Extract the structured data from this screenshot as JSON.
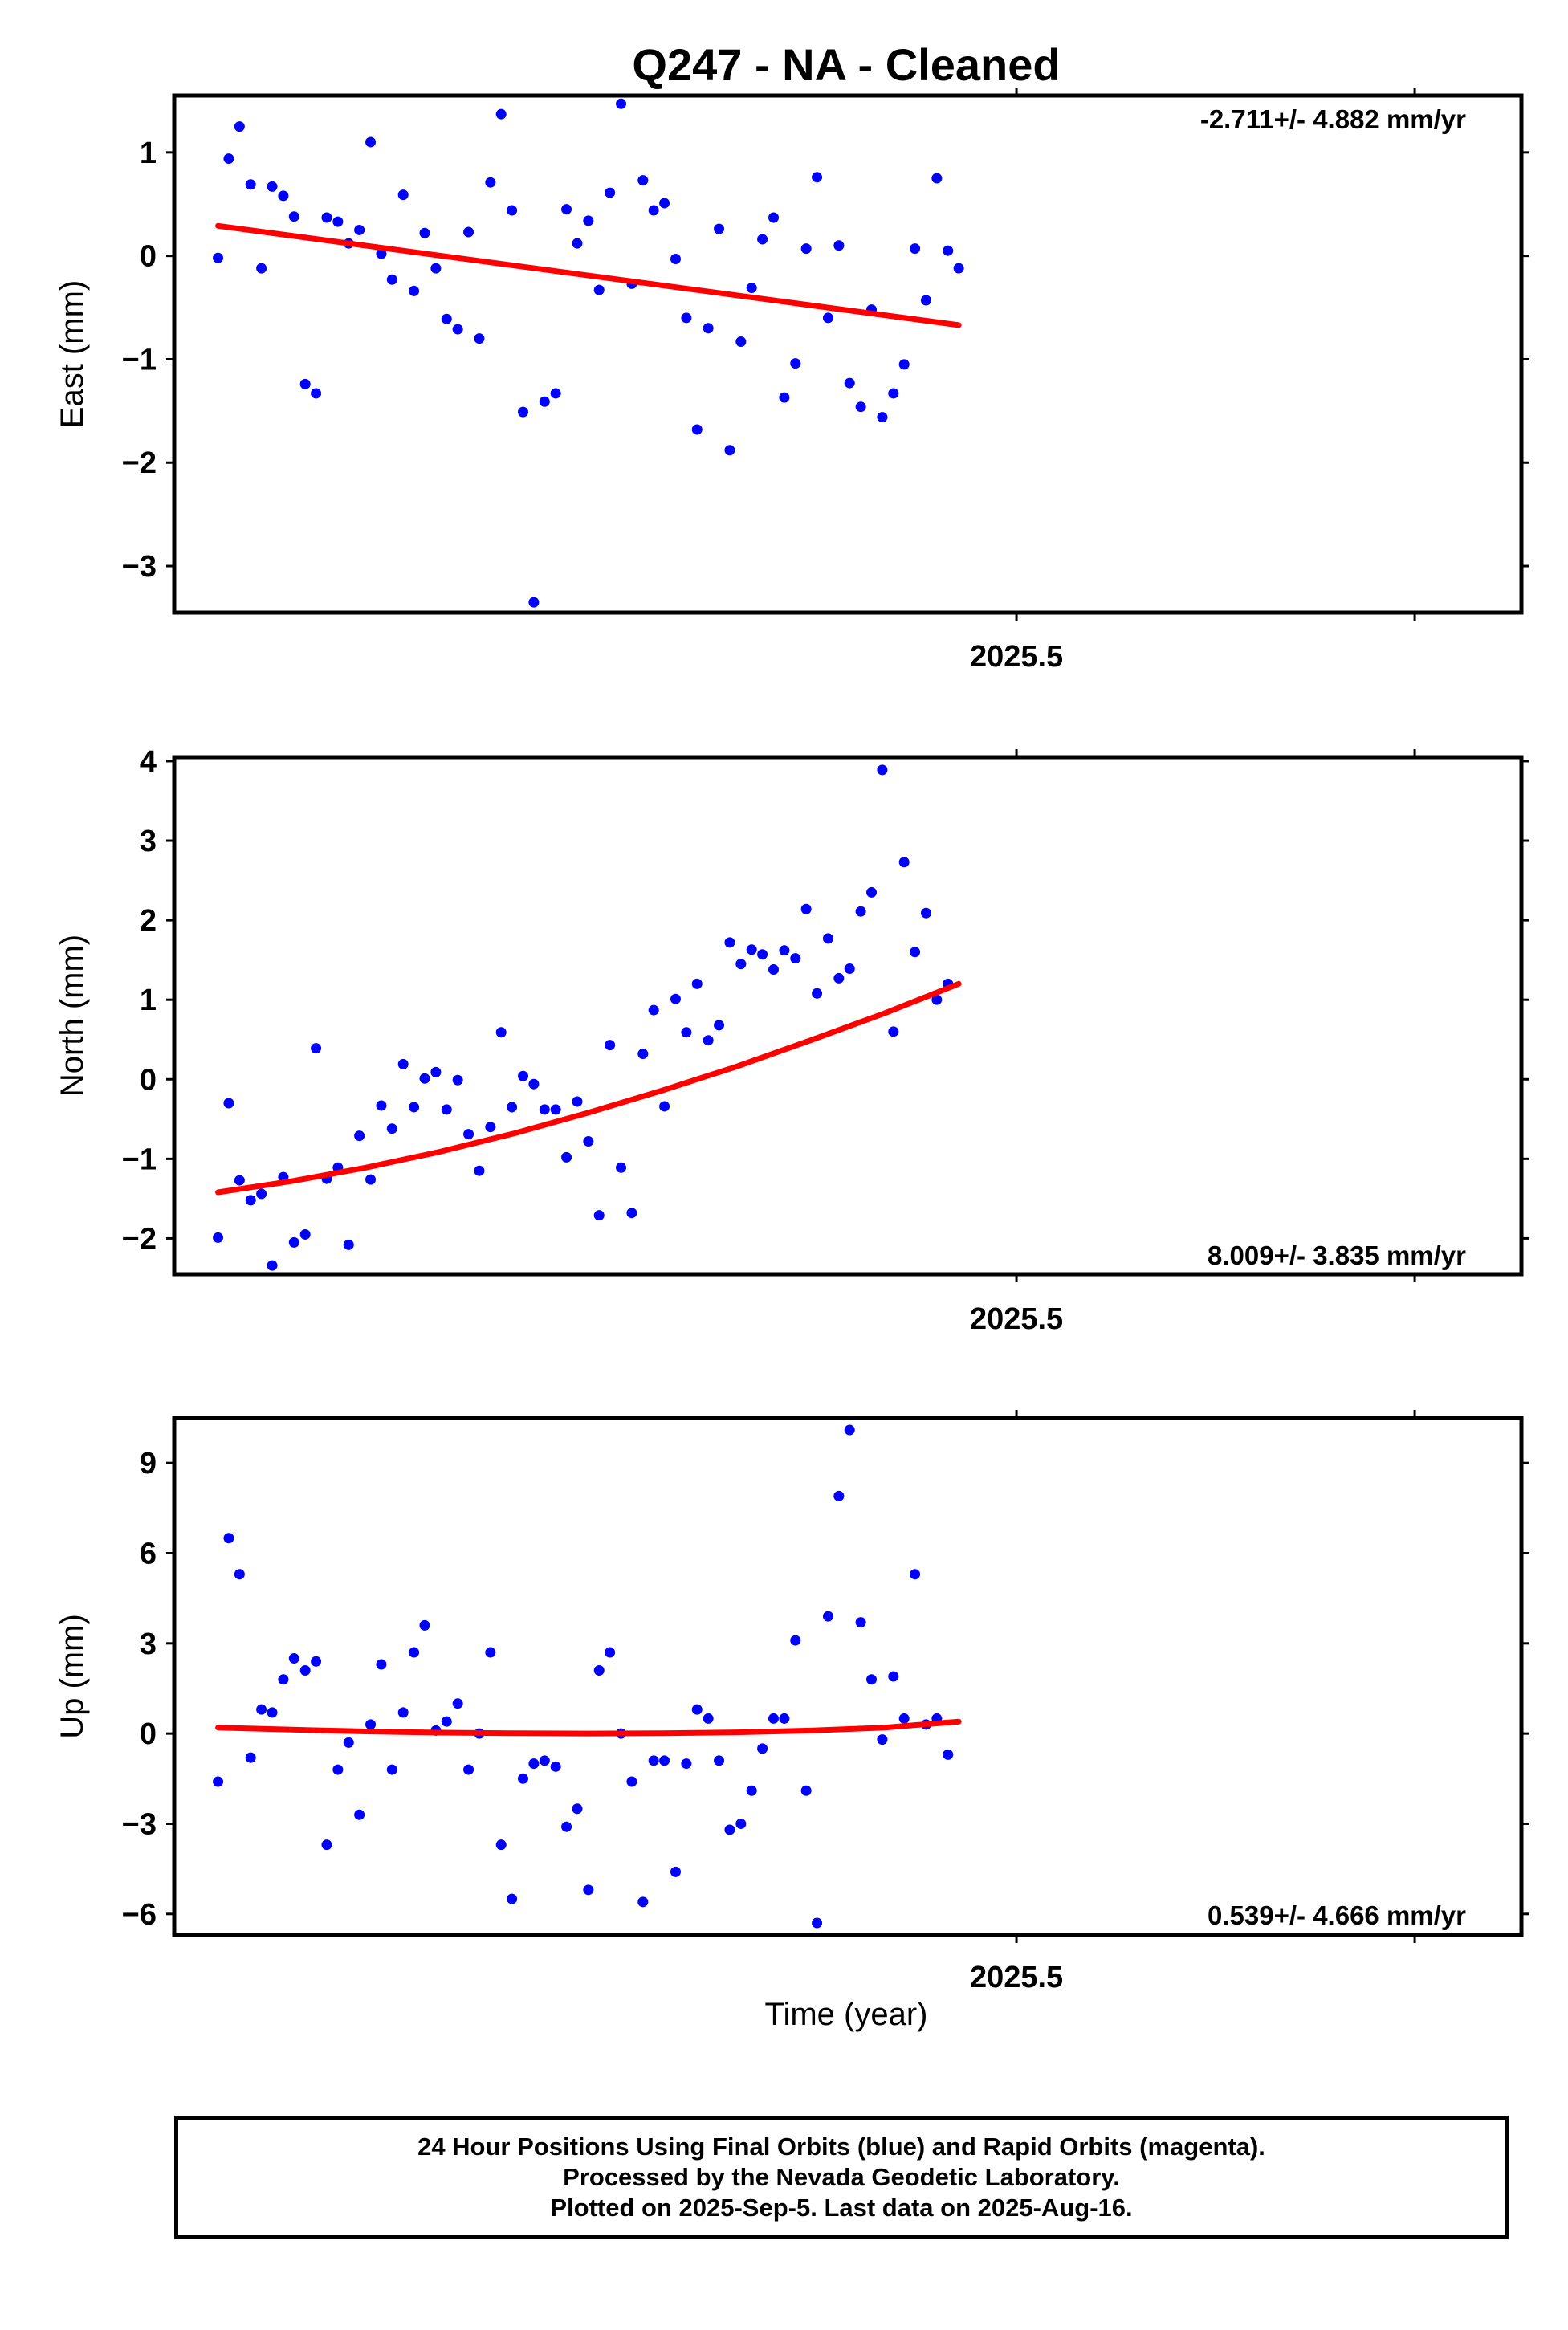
{
  "title": "Q247  - NA - Cleaned",
  "xlabel": "Time (year)",
  "colors": {
    "data": "#0000ff",
    "fit": "#ff0000",
    "frame": "#000000"
  },
  "footer": {
    "line1": "24 Hour Positions Using Final Orbits (blue) and Rapid Orbits (magenta).",
    "line2": "Processed by the Nevada Geodetic Laboratory.",
    "line3": "Plotted on 2025-Sep-5. Last data on 2025-Aug-16."
  },
  "chart_data": [
    {
      "type": "scatter",
      "panel": "east",
      "ylabel": "East (mm)",
      "rate_label": "-2.711+/- 4.882 mm/yr",
      "xlim": [
        2025.2885,
        2025.6268
      ],
      "ylim": [
        -3.45,
        1.55
      ],
      "yticks": [
        "1",
        "0",
        "−1",
        "−2",
        "−3"
      ],
      "ytick_values": [
        1,
        0,
        -1,
        -2,
        -3
      ],
      "xticks": [
        "2025.5"
      ],
      "xtick_values": [
        2025.5
      ],
      "x": [
        2025.2995,
        2025.3022,
        2025.3049,
        2025.3077,
        2025.3104,
        2025.3131,
        2025.3159,
        2025.3186,
        2025.3214,
        2025.3241,
        2025.3268,
        2025.3296,
        2025.3323,
        2025.335,
        2025.3378,
        2025.3405,
        2025.3432,
        2025.346,
        2025.3487,
        2025.3514,
        2025.3542,
        2025.3569,
        2025.3597,
        2025.3624,
        2025.3651,
        2025.3679,
        2025.3706,
        2025.3733,
        2025.3761,
        2025.3788,
        2025.3815,
        2025.3843,
        2025.387,
        2025.3897,
        2025.3925,
        2025.3952,
        2025.3979,
        2025.4007,
        2025.4034,
        2025.4062,
        2025.4089,
        2025.4116,
        2025.4144,
        2025.4171,
        2025.4198,
        2025.4226,
        2025.4253,
        2025.428,
        2025.4308,
        2025.4335,
        2025.4362,
        2025.439,
        2025.4417,
        2025.4445,
        2025.4472,
        2025.4499,
        2025.4527,
        2025.4554,
        2025.4581,
        2025.4609,
        2025.4636,
        2025.4663,
        2025.4691,
        2025.4718,
        2025.4745,
        2025.4773,
        2025.48,
        2025.4828,
        2025.4855
      ],
      "y": [
        -0.02,
        0.94,
        1.25,
        0.69,
        -0.12,
        0.67,
        0.58,
        0.38,
        -1.24,
        -1.33,
        0.37,
        0.33,
        0.12,
        0.25,
        1.1,
        0.02,
        -0.23,
        0.59,
        -0.34,
        0.22,
        -0.12,
        -0.61,
        -0.71,
        0.23,
        -0.8,
        0.71,
        1.37,
        0.44,
        -1.51,
        -3.35,
        -1.41,
        -1.33,
        0.45,
        0.12,
        0.34,
        -0.33,
        0.61,
        1.47,
        -0.27,
        0.73,
        0.44,
        0.51,
        -0.03,
        -0.6,
        -1.68,
        -0.7,
        0.26,
        -1.88,
        -0.83,
        -0.31,
        0.16,
        0.37,
        -1.37,
        -1.04,
        0.07,
        0.76,
        -0.6,
        0.1,
        -1.23,
        -1.46,
        -0.52,
        -1.56,
        -1.33,
        -1.05,
        0.07,
        -0.43,
        0.75,
        0.05,
        -0.12
      ],
      "fit": {
        "x": [
          2025.2995,
          2025.4855
        ],
        "y": [
          0.29,
          -0.67
        ]
      }
    },
    {
      "type": "scatter",
      "panel": "north",
      "ylabel": "North (mm)",
      "rate_label": "8.009+/- 3.835 mm/yr",
      "xlim": [
        2025.2885,
        2025.6268
      ],
      "ylim": [
        -2.45,
        4.05
      ],
      "yticks": [
        "4",
        "3",
        "2",
        "1",
        "0",
        "−1",
        "−2"
      ],
      "ytick_values": [
        4,
        3,
        2,
        1,
        0,
        -1,
        -2
      ],
      "xticks": [
        "2025.5"
      ],
      "xtick_values": [
        2025.5
      ],
      "x": [
        2025.2995,
        2025.3022,
        2025.3049,
        2025.3077,
        2025.3104,
        2025.3131,
        2025.3159,
        2025.3186,
        2025.3214,
        2025.3241,
        2025.3268,
        2025.3296,
        2025.3323,
        2025.335,
        2025.3378,
        2025.3405,
        2025.3432,
        2025.346,
        2025.3487,
        2025.3514,
        2025.3542,
        2025.3569,
        2025.3597,
        2025.3624,
        2025.3651,
        2025.3679,
        2025.3706,
        2025.3733,
        2025.3761,
        2025.3788,
        2025.3815,
        2025.3843,
        2025.387,
        2025.3897,
        2025.3925,
        2025.3952,
        2025.3979,
        2025.4007,
        2025.4034,
        2025.4062,
        2025.4089,
        2025.4116,
        2025.4144,
        2025.4171,
        2025.4198,
        2025.4226,
        2025.4253,
        2025.428,
        2025.4308,
        2025.4335,
        2025.4362,
        2025.439,
        2025.4417,
        2025.4445,
        2025.4472,
        2025.4499,
        2025.4527,
        2025.4554,
        2025.4581,
        2025.4609,
        2025.4636,
        2025.4663,
        2025.4691,
        2025.4718,
        2025.4745,
        2025.4773,
        2025.48,
        2025.4828
      ],
      "y": [
        -1.99,
        -0.3,
        -1.27,
        -1.52,
        -1.44,
        -2.34,
        -1.23,
        -2.05,
        -1.95,
        0.39,
        -1.25,
        -1.11,
        -2.08,
        -0.71,
        -1.26,
        -0.33,
        -0.62,
        0.19,
        -0.35,
        0.01,
        0.09,
        -0.38,
        -0.01,
        -0.69,
        -1.15,
        -0.6,
        0.59,
        -0.35,
        0.04,
        -0.06,
        -0.38,
        -0.38,
        -0.98,
        -0.28,
        -0.78,
        -1.71,
        0.43,
        -1.11,
        -1.68,
        0.32,
        0.87,
        -0.34,
        1.01,
        0.59,
        1.2,
        0.49,
        0.68,
        1.72,
        1.45,
        1.63,
        1.57,
        1.38,
        1.62,
        1.52,
        2.14,
        1.08,
        1.77,
        1.27,
        1.39,
        2.11,
        2.35,
        3.89,
        0.6,
        2.73,
        1.6,
        2.09,
        1.0,
        1.2
      ],
      "fit": {
        "x": [
          2025.2995,
          2025.3181,
          2025.3367,
          2025.3553,
          2025.3739,
          2025.3925,
          2025.4111,
          2025.4297,
          2025.4483,
          2025.4669,
          2025.4855
        ],
        "y": [
          -1.42,
          -1.28,
          -1.11,
          -0.91,
          -0.68,
          -0.42,
          -0.14,
          0.16,
          0.49,
          0.83,
          1.2
        ]
      }
    },
    {
      "type": "scatter",
      "panel": "up",
      "ylabel": "Up (mm)",
      "rate_label": "0.539+/- 4.666 mm/yr",
      "xlabel": "Time (year)",
      "xlim": [
        2025.2885,
        2025.6268
      ],
      "ylim": [
        -6.7,
        10.5
      ],
      "yticks": [
        "9",
        "6",
        "3",
        "0",
        "−3",
        "−6"
      ],
      "ytick_values": [
        9,
        6,
        3,
        0,
        -3,
        -6
      ],
      "xticks": [
        "2025.5"
      ],
      "xtick_values": [
        2025.5
      ],
      "x": [
        2025.2995,
        2025.3022,
        2025.3049,
        2025.3077,
        2025.3104,
        2025.3131,
        2025.3159,
        2025.3186,
        2025.3214,
        2025.3241,
        2025.3268,
        2025.3296,
        2025.3323,
        2025.335,
        2025.3378,
        2025.3405,
        2025.3432,
        2025.346,
        2025.3487,
        2025.3514,
        2025.3542,
        2025.3569,
        2025.3597,
        2025.3624,
        2025.3651,
        2025.3679,
        2025.3706,
        2025.3733,
        2025.3761,
        2025.3788,
        2025.3815,
        2025.3843,
        2025.387,
        2025.3897,
        2025.3925,
        2025.3952,
        2025.3979,
        2025.4007,
        2025.4034,
        2025.4062,
        2025.4089,
        2025.4116,
        2025.4144,
        2025.4171,
        2025.4198,
        2025.4226,
        2025.4253,
        2025.428,
        2025.4308,
        2025.4335,
        2025.4362,
        2025.439,
        2025.4417,
        2025.4445,
        2025.4472,
        2025.4499,
        2025.4527,
        2025.4554,
        2025.4581,
        2025.4609,
        2025.4636,
        2025.4663,
        2025.4691,
        2025.4718,
        2025.4745,
        2025.4773,
        2025.48,
        2025.4828
      ],
      "y": [
        -1.6,
        6.5,
        5.3,
        -0.8,
        0.8,
        0.7,
        1.8,
        2.5,
        2.1,
        2.4,
        -3.7,
        -1.2,
        -0.3,
        -2.7,
        0.3,
        2.3,
        -1.2,
        0.7,
        2.7,
        3.6,
        0.1,
        0.4,
        1.0,
        -1.2,
        0.0,
        2.7,
        -3.7,
        -5.5,
        -1.5,
        -1.0,
        -0.9,
        -1.1,
        -3.1,
        -2.5,
        -5.2,
        2.1,
        2.7,
        0.0,
        -1.6,
        -5.6,
        -0.9,
        -0.9,
        -4.6,
        -1.0,
        0.8,
        0.5,
        -0.9,
        -3.2,
        -3.0,
        -1.9,
        -0.5,
        0.5,
        0.5,
        3.1,
        -1.9,
        -6.3,
        3.9,
        7.9,
        10.1,
        3.7,
        1.8,
        -0.2,
        1.9,
        0.5,
        5.3,
        0.3,
        0.5,
        -0.7
      ],
      "fit": {
        "x": [
          2025.2995,
          2025.3181,
          2025.3367,
          2025.3553,
          2025.3739,
          2025.3925,
          2025.4111,
          2025.4297,
          2025.4483,
          2025.4669,
          2025.4855
        ],
        "y": [
          0.2,
          0.13,
          0.07,
          0.03,
          0.01,
          0.0,
          0.01,
          0.04,
          0.1,
          0.2,
          0.4
        ]
      }
    }
  ]
}
